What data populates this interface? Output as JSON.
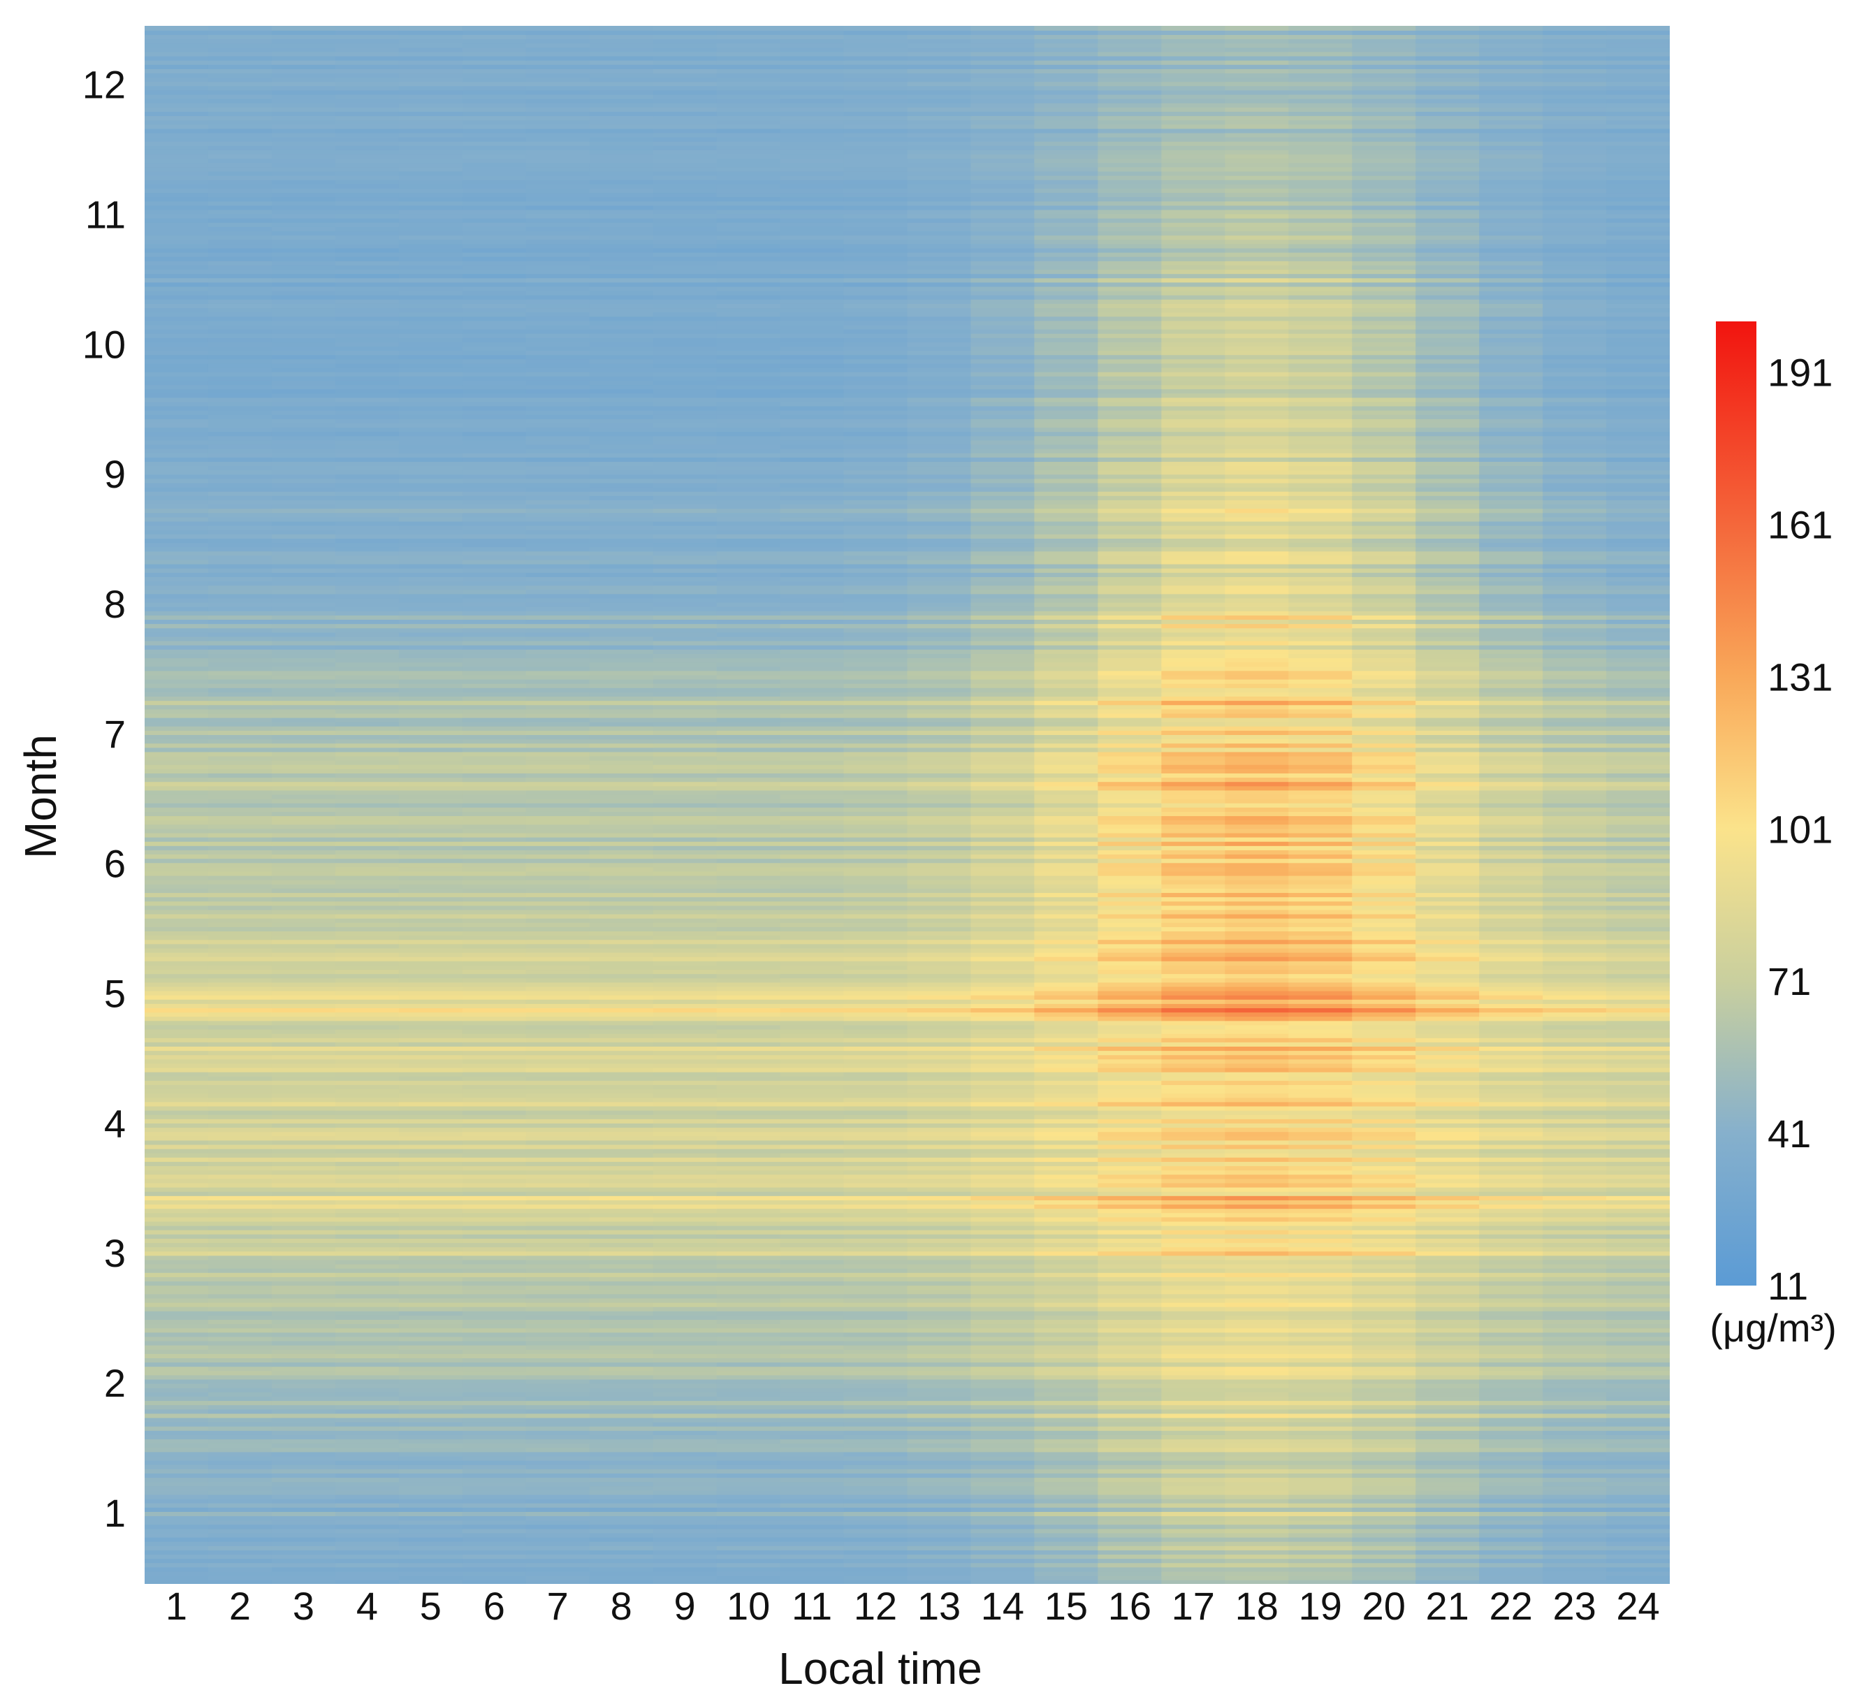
{
  "chart_data": {
    "type": "heatmap",
    "title": "",
    "xlabel": "Local time",
    "ylabel": "Month",
    "x_ticks": [
      "1",
      "2",
      "3",
      "4",
      "5",
      "6",
      "7",
      "8",
      "9",
      "10",
      "11",
      "12",
      "13",
      "14",
      "15",
      "16",
      "17",
      "18",
      "19",
      "20",
      "21",
      "22",
      "23",
      "24"
    ],
    "y_ticks": [
      "1",
      "2",
      "3",
      "4",
      "5",
      "6",
      "7",
      "8",
      "9",
      "10",
      "11",
      "12"
    ],
    "x_range": [
      1,
      24
    ],
    "y_range": [
      0.45,
      12.45
    ],
    "colorbar": {
      "label": "(μg/m³)",
      "min": 11,
      "max": 201,
      "ticks": [
        "11",
        "41",
        "71",
        "101",
        "131",
        "161",
        "191"
      ],
      "tick_values": [
        11,
        41,
        71,
        101,
        131,
        161,
        191
      ],
      "colors": [
        {
          "value": 11,
          "color": "#5b9bd5"
        },
        {
          "value": 41,
          "color": "#86b0cc"
        },
        {
          "value": 71,
          "color": "#c9cf9e"
        },
        {
          "value": 101,
          "color": "#fbe38b"
        },
        {
          "value": 131,
          "color": "#f9a859"
        },
        {
          "value": 161,
          "color": "#f4673b"
        },
        {
          "value": 201,
          "color": "#f2140f"
        }
      ]
    },
    "description_note": "Diurnal-by-month PM concentration heatmap: ~365 daily rows x 24 hourly columns",
    "monthly_hourly_profile": [
      {
        "month": 1,
        "night": 38,
        "peak_hour": 18,
        "peak": 68
      },
      {
        "month": 2,
        "night": 55,
        "peak_hour": 18,
        "peak": 85
      },
      {
        "month": 3,
        "night": 70,
        "peak_hour": 18,
        "peak": 100
      },
      {
        "month": 4,
        "night": 78,
        "peak_hour": 18,
        "peak": 108
      },
      {
        "month": 5,
        "night": 80,
        "peak_hour": 18,
        "peak": 122
      },
      {
        "month": 6,
        "night": 66,
        "peak_hour": 18,
        "peak": 122
      },
      {
        "month": 7,
        "night": 60,
        "peak_hour": 18,
        "peak": 110
      },
      {
        "month": 8,
        "night": 40,
        "peak_hour": 18,
        "peak": 88
      },
      {
        "month": 9,
        "night": 36,
        "peak_hour": 18,
        "peak": 82
      },
      {
        "month": 10,
        "night": 32,
        "peak_hour": 18,
        "peak": 75
      },
      {
        "month": 11,
        "night": 33,
        "peak_hour": 18,
        "peak": 62
      },
      {
        "month": 12,
        "night": 36,
        "peak_hour": 18,
        "peak": 52
      }
    ]
  }
}
